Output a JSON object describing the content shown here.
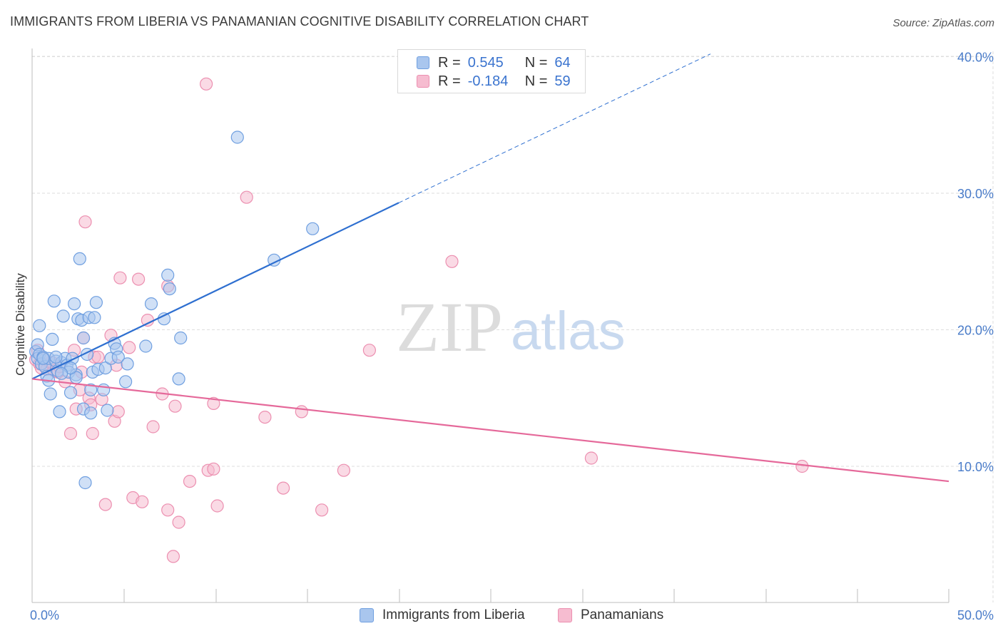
{
  "header": {
    "title": "IMMIGRANTS FROM LIBERIA VS PANAMANIAN COGNITIVE DISABILITY CORRELATION CHART",
    "source": "Source: ZipAtlas.com"
  },
  "watermark": {
    "zip": "ZIP",
    "atlas": "atlas"
  },
  "legend": {
    "rows": [
      {
        "r_label": "R =",
        "r_value": "0.545",
        "n_label": "N =",
        "n_value": "64"
      },
      {
        "r_label": "R =",
        "r_value": "-0.184",
        "n_label": "N =",
        "n_value": "59"
      }
    ]
  },
  "bottom_legend": {
    "series1": "Immigrants from Liberia",
    "series2": "Panamanians"
  },
  "colors": {
    "blue_fill": "#a9c6ee",
    "blue_stroke": "#6f9fe0",
    "blue_line": "#2e6fd0",
    "pink_fill": "#f6bcd0",
    "pink_stroke": "#ec8fb0",
    "pink_line": "#e5699a",
    "grid": "#dedede",
    "tick_text": "#4a7cc9"
  },
  "chart_data": {
    "type": "scatter",
    "title": "IMMIGRANTS FROM LIBERIA VS PANAMANIAN COGNITIVE DISABILITY CORRELATION CHART",
    "xlabel": "",
    "ylabel": "Cognitive Disability",
    "xlim": [
      0,
      50
    ],
    "ylim": [
      0,
      42
    ],
    "x_tick_labels": [
      "0.0%",
      "50.0%"
    ],
    "y_ticks": [
      10,
      20,
      30,
      40
    ],
    "y_tick_labels": [
      "10.0%",
      "20.0%",
      "30.0%",
      "40.0%"
    ],
    "grid": true,
    "series": [
      {
        "name": "Immigrants from Liberia",
        "R": 0.545,
        "N": 64,
        "trend": {
          "x0": 0,
          "y0": 16.4,
          "x1": 20,
          "y1": 29.3,
          "dash_to_x": 37,
          "dash_to_y": 40.2
        },
        "points": [
          [
            0.2,
            18.4
          ],
          [
            0.3,
            18.9
          ],
          [
            0.3,
            17.9
          ],
          [
            0.4,
            18.2
          ],
          [
            0.4,
            20.3
          ],
          [
            0.5,
            17.5
          ],
          [
            0.6,
            18.0
          ],
          [
            0.7,
            17.3
          ],
          [
            0.8,
            16.6
          ],
          [
            0.9,
            17.9
          ],
          [
            1.0,
            15.3
          ],
          [
            1.1,
            19.3
          ],
          [
            1.2,
            22.1
          ],
          [
            1.3,
            17.7
          ],
          [
            1.4,
            17.0
          ],
          [
            1.5,
            14.0
          ],
          [
            1.6,
            17.6
          ],
          [
            1.7,
            21.0
          ],
          [
            1.8,
            17.9
          ],
          [
            1.9,
            17.4
          ],
          [
            2.0,
            16.9
          ],
          [
            2.1,
            15.4
          ],
          [
            2.2,
            17.9
          ],
          [
            2.3,
            21.9
          ],
          [
            2.4,
            16.7
          ],
          [
            2.4,
            16.5
          ],
          [
            2.5,
            20.8
          ],
          [
            2.6,
            25.2
          ],
          [
            2.7,
            20.7
          ],
          [
            2.8,
            19.4
          ],
          [
            2.8,
            14.2
          ],
          [
            2.9,
            8.8
          ],
          [
            3.0,
            18.2
          ],
          [
            3.1,
            20.9
          ],
          [
            3.2,
            13.9
          ],
          [
            3.2,
            15.6
          ],
          [
            3.3,
            16.9
          ],
          [
            3.4,
            20.9
          ],
          [
            3.5,
            22.0
          ],
          [
            3.6,
            17.1
          ],
          [
            3.9,
            15.6
          ],
          [
            4.0,
            17.2
          ],
          [
            4.1,
            14.1
          ],
          [
            4.3,
            17.9
          ],
          [
            4.5,
            19.0
          ],
          [
            4.6,
            18.6
          ],
          [
            4.7,
            18.0
          ],
          [
            5.1,
            16.2
          ],
          [
            5.2,
            17.5
          ],
          [
            6.2,
            18.8
          ],
          [
            6.5,
            21.9
          ],
          [
            7.2,
            20.8
          ],
          [
            7.4,
            24.0
          ],
          [
            7.5,
            23.0
          ],
          [
            8.0,
            16.4
          ],
          [
            8.1,
            19.4
          ],
          [
            11.2,
            34.1
          ],
          [
            13.2,
            25.1
          ],
          [
            15.3,
            27.4
          ],
          [
            0.6,
            17.9
          ],
          [
            1.3,
            18.0
          ],
          [
            2.1,
            17.2
          ],
          [
            0.9,
            16.3
          ],
          [
            1.6,
            16.8
          ]
        ]
      },
      {
        "name": "Panamanians",
        "R": -0.184,
        "N": 59,
        "trend": {
          "x0": 0,
          "y0": 16.4,
          "x1": 50,
          "y1": 8.9
        },
        "points": [
          [
            0.2,
            17.8
          ],
          [
            0.3,
            18.5
          ],
          [
            0.4,
            17.5
          ],
          [
            0.5,
            17.2
          ],
          [
            0.6,
            17.9
          ],
          [
            0.8,
            17.1
          ],
          [
            1.0,
            17.6
          ],
          [
            1.2,
            17.0
          ],
          [
            1.4,
            16.9
          ],
          [
            1.5,
            17.3
          ],
          [
            1.8,
            16.2
          ],
          [
            2.1,
            12.4
          ],
          [
            2.3,
            18.5
          ],
          [
            2.4,
            14.2
          ],
          [
            2.6,
            15.6
          ],
          [
            2.7,
            16.9
          ],
          [
            2.8,
            19.4
          ],
          [
            2.9,
            27.9
          ],
          [
            3.1,
            15.0
          ],
          [
            3.2,
            14.5
          ],
          [
            3.3,
            12.4
          ],
          [
            3.4,
            18.0
          ],
          [
            3.6,
            18.0
          ],
          [
            3.8,
            14.9
          ],
          [
            4.0,
            7.2
          ],
          [
            4.3,
            19.6
          ],
          [
            4.5,
            13.3
          ],
          [
            4.6,
            17.4
          ],
          [
            4.7,
            14.0
          ],
          [
            4.8,
            23.8
          ],
          [
            5.3,
            18.7
          ],
          [
            5.5,
            7.7
          ],
          [
            5.8,
            23.7
          ],
          [
            6.0,
            7.4
          ],
          [
            6.3,
            20.7
          ],
          [
            6.6,
            12.9
          ],
          [
            7.1,
            15.3
          ],
          [
            7.4,
            23.2
          ],
          [
            7.4,
            6.8
          ],
          [
            7.7,
            3.4
          ],
          [
            7.8,
            14.4
          ],
          [
            8.0,
            5.9
          ],
          [
            8.6,
            8.9
          ],
          [
            9.5,
            38.0
          ],
          [
            9.6,
            9.7
          ],
          [
            9.9,
            9.8
          ],
          [
            9.9,
            14.6
          ],
          [
            10.1,
            7.1
          ],
          [
            11.7,
            29.7
          ],
          [
            12.7,
            13.6
          ],
          [
            13.7,
            8.4
          ],
          [
            14.7,
            14.0
          ],
          [
            15.8,
            6.8
          ],
          [
            17.0,
            9.7
          ],
          [
            18.4,
            18.5
          ],
          [
            22.9,
            25.0
          ],
          [
            30.5,
            10.6
          ],
          [
            42.0,
            10.0
          ],
          [
            1.1,
            17.6
          ]
        ]
      }
    ]
  }
}
